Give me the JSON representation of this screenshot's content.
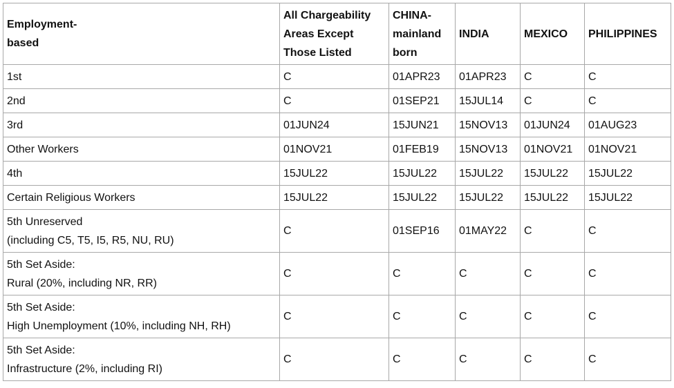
{
  "table": {
    "header": [
      [
        "Employment-",
        "based"
      ],
      [
        "All Chargeability",
        "Areas Except",
        "Those Listed"
      ],
      [
        "CHINA-",
        "mainland",
        "born"
      ],
      [
        "INDIA"
      ],
      [
        "MEXICO"
      ],
      [
        "PHILIPPINES"
      ]
    ],
    "rows": [
      {
        "label": [
          "1st"
        ],
        "cells": [
          "C",
          "01APR23",
          "01APR23",
          "C",
          "C"
        ]
      },
      {
        "label": [
          "2nd"
        ],
        "cells": [
          "C",
          "01SEP21",
          "15JUL14",
          "C",
          "C"
        ]
      },
      {
        "label": [
          "3rd"
        ],
        "cells": [
          "01JUN24",
          "15JUN21",
          "15NOV13",
          "01JUN24",
          "01AUG23"
        ]
      },
      {
        "label": [
          "Other Workers"
        ],
        "cells": [
          "01NOV21",
          "01FEB19",
          "15NOV13",
          "01NOV21",
          "01NOV21"
        ]
      },
      {
        "label": [
          "4th"
        ],
        "cells": [
          "15JUL22",
          "15JUL22",
          "15JUL22",
          "15JUL22",
          "15JUL22"
        ]
      },
      {
        "label": [
          "Certain Religious Workers"
        ],
        "cells": [
          "15JUL22",
          "15JUL22",
          "15JUL22",
          "15JUL22",
          "15JUL22"
        ]
      },
      {
        "label": [
          "5th Unreserved",
          "(including C5, T5, I5, R5, NU, RU)"
        ],
        "cells": [
          "C",
          "01SEP16",
          "01MAY22",
          "C",
          "C"
        ]
      },
      {
        "label": [
          "5th Set Aside:",
          "Rural (20%, including NR, RR)"
        ],
        "cells": [
          "C",
          "C",
          "C",
          "C",
          "C"
        ]
      },
      {
        "label": [
          "5th Set Aside:",
          "High Unemployment (10%, including NH, RH)"
        ],
        "cells": [
          "C",
          "C",
          "C",
          "C",
          "C"
        ]
      },
      {
        "label": [
          "5th Set Aside:",
          "Infrastructure (2%, including RI)"
        ],
        "cells": [
          "C",
          "C",
          "C",
          "C",
          "C"
        ]
      }
    ]
  }
}
